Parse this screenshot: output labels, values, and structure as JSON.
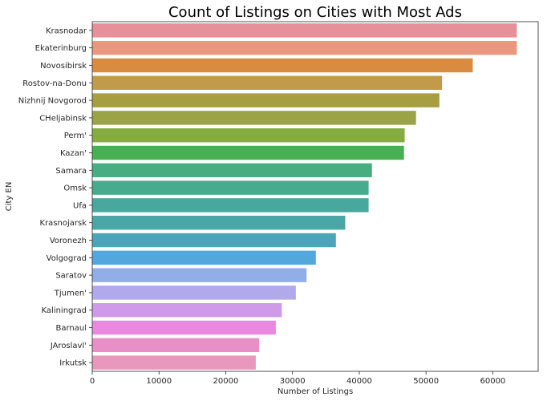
{
  "chart_data": {
    "type": "bar",
    "orientation": "horizontal",
    "title": "Count of Listings on Cities with Most Ads",
    "xlabel": "Number of Listings",
    "ylabel": "City EN",
    "xlim": [
      0,
      66800
    ],
    "xticks": [
      0,
      10000,
      20000,
      30000,
      40000,
      50000,
      60000
    ],
    "grid": false,
    "categories": [
      "Krasnodar",
      "Ekaterinburg",
      "Novosibirsk",
      "Rostov-na-Donu",
      "Nizhnij Novgorod",
      "CHeljabinsk",
      "Perm'",
      "Kazan'",
      "Samara",
      "Omsk",
      "Ufa",
      "Krasnojarsk",
      "Voronezh",
      "Volgograd",
      "Saratov",
      "Tjumen'",
      "Kaliningrad",
      "Barnaul",
      "JAroslavl'",
      "Irkutsk"
    ],
    "values": [
      63600,
      63600,
      57000,
      52400,
      52000,
      48500,
      46800,
      46700,
      41900,
      41400,
      41400,
      37900,
      36500,
      33500,
      32100,
      30500,
      28400,
      27500,
      25000,
      24500
    ],
    "colors": [
      "#e8909a",
      "#e99880",
      "#d98b40",
      "#c29a4c",
      "#a69e40",
      "#9aa446",
      "#84ac40",
      "#48b050",
      "#48ad80",
      "#49ab8e",
      "#49a89d",
      "#49a7a8",
      "#4aa5b8",
      "#52a8dc",
      "#92aee8",
      "#b2a8ec",
      "#cf9ae8",
      "#e98ae0",
      "#e88fc8",
      "#e898bc"
    ]
  }
}
